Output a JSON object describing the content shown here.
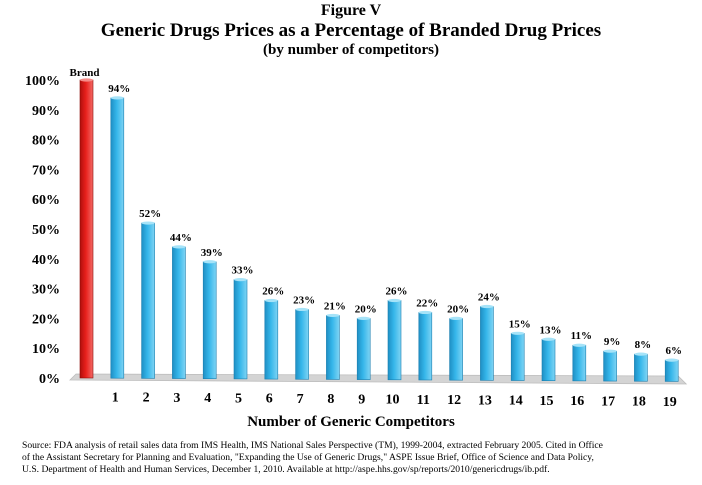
{
  "figure_label": "Figure V",
  "chart_data": {
    "type": "bar",
    "title": "Generic Drugs Prices as a Percentage of Branded Drug Prices",
    "subtitle": "(by number of competitors)",
    "xlabel": "Number of Generic Competitors",
    "ylabel": "",
    "ylim": [
      0,
      100
    ],
    "yticks": [
      "0%",
      "10%",
      "20%",
      "30%",
      "40%",
      "50%",
      "60%",
      "70%",
      "80%",
      "90%",
      "100%"
    ],
    "grid": false,
    "categories": [
      "Brand",
      "1",
      "2",
      "3",
      "4",
      "5",
      "6",
      "7",
      "8",
      "9",
      "10",
      "11",
      "12",
      "13",
      "14",
      "15",
      "16",
      "17",
      "18",
      "19"
    ],
    "values": [
      100,
      94,
      52,
      44,
      39,
      33,
      26,
      23,
      21,
      20,
      26,
      22,
      20,
      24,
      15,
      13,
      11,
      9,
      8,
      6
    ],
    "data_labels": [
      "Brand",
      "94%",
      "52%",
      "44%",
      "39%",
      "33%",
      "26%",
      "23%",
      "21%",
      "20%",
      "26%",
      "22%",
      "20%",
      "24%",
      "15%",
      "13%",
      "11%",
      "9%",
      "8%",
      "6%"
    ],
    "colors": {
      "brand": "#e8201c",
      "generic": "#35b6ea",
      "floor": "#d4d4d4"
    }
  },
  "source_lines": [
    "Source:  FDA analysis of retail sales data from IMS Health, IMS National Sales Perspective (TM), 1999-2004, extracted February 2005. Cited in Office",
    "of the Assistant Secretary for Planning and Evaluation, \"Expanding the Use of Generic Drugs,\" ASPE Issue Brief, Office of Science and Data Policy,",
    "U.S. Department of Health and Human Services, December 1, 2010. Available at http://aspe.hhs.gov/sp/reports/2010/genericdrugs/ib.pdf."
  ]
}
